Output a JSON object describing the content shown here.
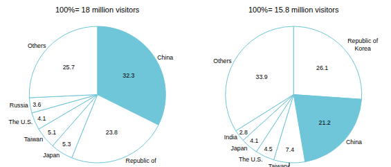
{
  "chart_data": [
    {
      "type": "pie",
      "title": "100%= 18 million visitors",
      "categories": [
        "China",
        "Republic of\nKorea",
        "Japan",
        "Taiwan",
        "The U.S.",
        "Russia",
        "Others"
      ],
      "values": [
        32.3,
        23.8,
        5.3,
        5.1,
        4.1,
        3.6,
        25.7
      ],
      "colors": [
        "#6ec6d8",
        "#ffffff",
        "#ffffff",
        "#ffffff",
        "#ffffff",
        "#ffffff",
        "#ffffff"
      ],
      "color": "#6ec6d8",
      "data_labels": true
    },
    {
      "type": "pie",
      "title": "100%= 15.8 million visitors",
      "categories": [
        "Republic of\nKorea",
        "China",
        "Taiwan",
        "The U.S.",
        "Japan",
        "India",
        "Others"
      ],
      "values": [
        26.1,
        21.2,
        7.4,
        4.5,
        4.1,
        2.8,
        33.9
      ],
      "colors": [
        "#ffffff",
        "#6ec6d8",
        "#ffffff",
        "#ffffff",
        "#ffffff",
        "#ffffff",
        "#ffffff"
      ],
      "color": "#6ec6d8",
      "data_labels": true
    }
  ]
}
